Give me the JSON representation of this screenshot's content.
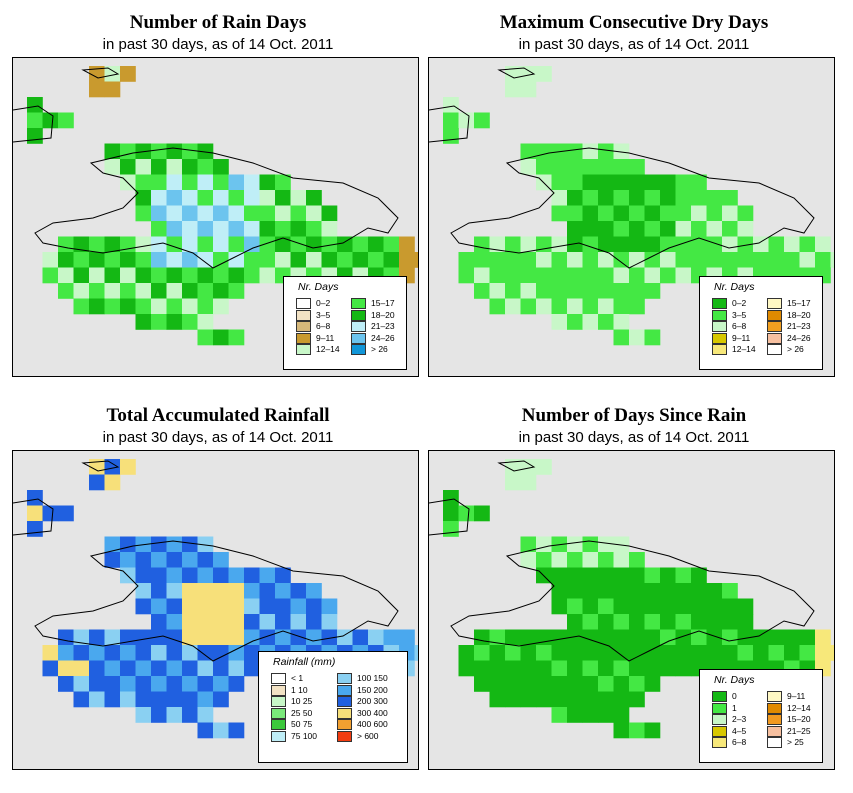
{
  "subtitle": "in past 30 days, as of  14 Oct. 2011",
  "panels": [
    {
      "id": "rain_days",
      "title": "Number of Rain Days",
      "legend_title": "Nr. Days",
      "legend": [
        {
          "label": "0–2",
          "color": "#ffffff"
        },
        {
          "label": "3–5",
          "color": "#f2e2c4"
        },
        {
          "label": "6–8",
          "color": "#d6b87a"
        },
        {
          "label": "9–11",
          "color": "#c99a2e"
        },
        {
          "label": "12–14",
          "color": "#c8f7c8"
        },
        {
          "label": "15–17",
          "color": "#44e844"
        },
        {
          "label": "18–20",
          "color": "#14b814"
        },
        {
          "label": "21–23",
          "color": "#bfeef7"
        },
        {
          "label": "24–26",
          "color": "#6cc4ee"
        },
        {
          "label": "> 26",
          "color": "#1196d8"
        }
      ]
    },
    {
      "id": "dry_days",
      "title": "Maximum Consecutive Dry Days",
      "legend_title": "Nr. Days",
      "legend": [
        {
          "label": "0–2",
          "color": "#14b814"
        },
        {
          "label": "3–5",
          "color": "#44e844"
        },
        {
          "label": "6–8",
          "color": "#c8f7c8"
        },
        {
          "label": "9–11",
          "color": "#d8c800"
        },
        {
          "label": "12–14",
          "color": "#f7e87a"
        },
        {
          "label": "15–17",
          "color": "#fff8c4"
        },
        {
          "label": "18–20",
          "color": "#e08a00"
        },
        {
          "label": "21–23",
          "color": "#f2a020"
        },
        {
          "label": "24–26",
          "color": "#f7c0a0"
        },
        {
          "label": "> 26",
          "color": "#ffffff"
        }
      ]
    },
    {
      "id": "rainfall",
      "title": "Total Accumulated Rainfall",
      "legend_title": "Rainfall (mm)",
      "legend": [
        {
          "label": "< 1",
          "color": "#ffffff"
        },
        {
          "label": "1    10",
          "color": "#f2e2c4"
        },
        {
          "label": "10   25",
          "color": "#c8f7c8"
        },
        {
          "label": "25   50",
          "color": "#7ae87a"
        },
        {
          "label": "50   75",
          "color": "#3cc83c"
        },
        {
          "label": "75  100",
          "color": "#bfeef7"
        },
        {
          "label": "100  150",
          "color": "#8ad0f2"
        },
        {
          "label": "150  200",
          "color": "#4aa8ee"
        },
        {
          "label": "200  300",
          "color": "#2060e0"
        },
        {
          "label": "300  400",
          "color": "#f7e07a"
        },
        {
          "label": "400  600",
          "color": "#f2a030"
        },
        {
          "label": "> 600",
          "color": "#f23c10"
        }
      ]
    },
    {
      "id": "since_rain",
      "title": "Number of Days Since Rain",
      "legend_title": "Nr. Days",
      "legend": [
        {
          "label": "0",
          "color": "#14b814"
        },
        {
          "label": "1",
          "color": "#44e844"
        },
        {
          "label": "2–3",
          "color": "#c8f7c8"
        },
        {
          "label": "4–5",
          "color": "#d8c800"
        },
        {
          "label": "6–8",
          "color": "#f7e87a"
        },
        {
          "label": "9–11",
          "color": "#fff8c4"
        },
        {
          "label": "12–14",
          "color": "#e08a00"
        },
        {
          "label": "15–20",
          "color": "#f29a20"
        },
        {
          "label": "21–25",
          "color": "#f7c0a0"
        },
        {
          "label": "> 25",
          "color": "#ffffff"
        }
      ]
    }
  ]
}
